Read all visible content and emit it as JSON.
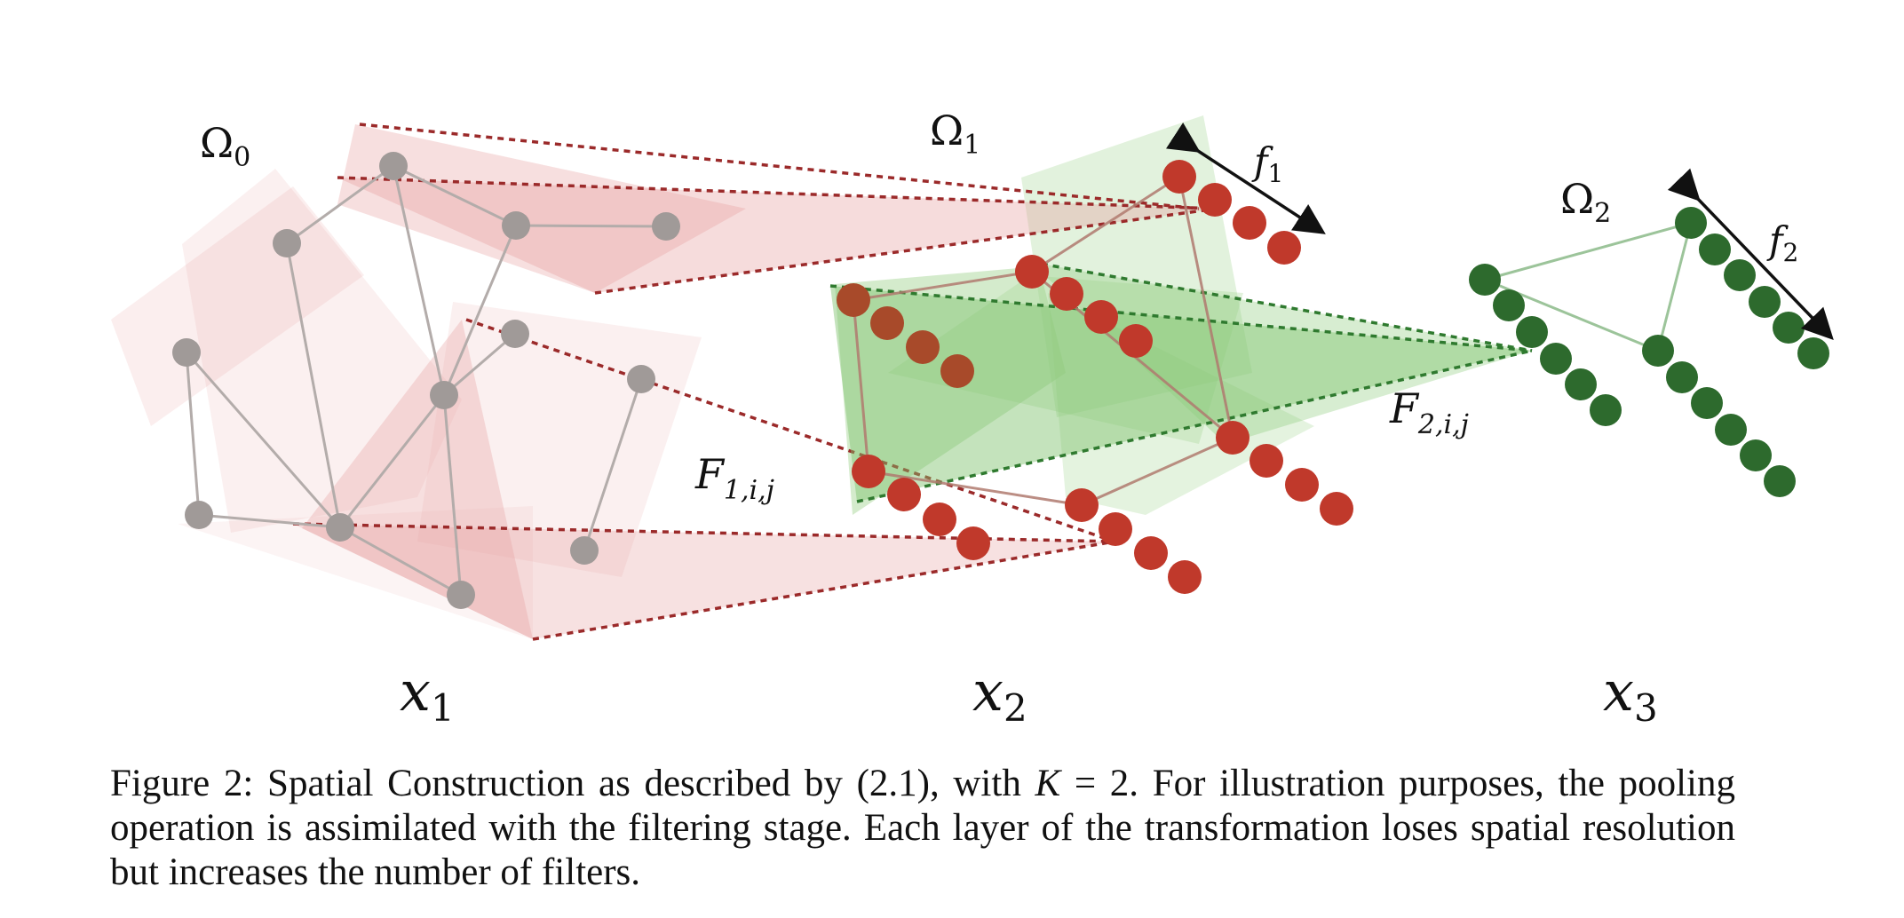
{
  "labels": {
    "omega0": {
      "base": "Ω",
      "sub": "0"
    },
    "omega1": {
      "base": "Ω",
      "sub": "1"
    },
    "omega2": {
      "base": "Ω",
      "sub": "2"
    },
    "f1": {
      "base": "f",
      "sub": "1"
    },
    "f2": {
      "base": "f",
      "sub": "2"
    },
    "F1": {
      "base": "F",
      "sub": "1,i,j"
    },
    "F2": {
      "base": "F",
      "sub": "2,i,j"
    },
    "x1": {
      "base": "x",
      "sub": "1"
    },
    "x2": {
      "base": "x",
      "sub": "2"
    },
    "x3": {
      "base": "x",
      "sub": "3"
    }
  },
  "caption": {
    "part1": "Figure 2: Spatial Construction as described by (2.1), with ",
    "k_symbol": "K",
    "part2": " = 2. For illustration purposes, the pooling operation is assimilated with the filtering stage. Each layer of the transformation loses spatial resolution but increases the number of filters."
  },
  "colors": {
    "gray_node": "#a09a98",
    "red_node": "#c0392b",
    "green_node": "#2d6a2d",
    "red_region": "#d98080",
    "green_region": "#7cc26a",
    "dashed_red": "#9b2a2a",
    "dashed_green": "#2f7a2f"
  }
}
